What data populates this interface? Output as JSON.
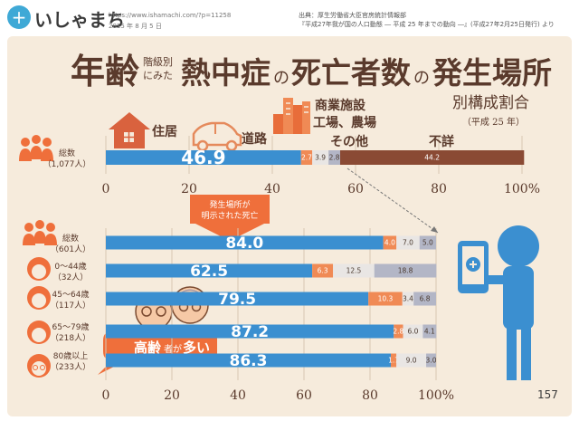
{
  "header": {
    "logo_icon": "plus-circle-icon",
    "logo": "いしゃまち",
    "url": "https://www.ishamachi.com/?p=11258",
    "date": "2015 年 8 月 5 日",
    "source_line1": "出典：厚生労働省大臣官房統計情報部",
    "source_line2": "『平成27年我が国の人口動態 ― 平成 25 年までの動向 ―』(平成27年2月25日発行) より"
  },
  "title": {
    "part1": "年齢",
    "small1": "階級別",
    "small2": "にみた",
    "part2": "熱中症",
    "no1": "の",
    "part3": "死亡者数",
    "no2": "の",
    "part4": "発生場所",
    "subtitle": "別構成割合",
    "year": "（平成 25 年）"
  },
  "colors": {
    "blue": "#3b8fd0",
    "orange": "#f08a55",
    "light_gray": "#e9e6e4",
    "slate": "#b3b6c6",
    "brown": "#8a4a34",
    "panel": "#f6ebdc"
  },
  "notes": {
    "arrow_label_1": "発生場所が",
    "arrow_label_2": "明示された死亡",
    "elderly_line1": "高齢",
    "elderly_small": "者が",
    "elderly_line2": "多い",
    "page_number": "157"
  },
  "chart_data": [
    {
      "type": "bar",
      "stacked": true,
      "orientation": "horizontal",
      "categories": [
        "総数（1,077人）"
      ],
      "category_labels": [
        [
          "総数",
          "（1,077人）"
        ]
      ],
      "series": [
        {
          "name": "住居",
          "values": [
            46.9
          ],
          "color": "#3b8fd0"
        },
        {
          "name": "道路",
          "values": [
            2.7
          ],
          "color": "#f08a55"
        },
        {
          "name": "商業施設 工場、農場",
          "values": [
            3.9
          ],
          "color": "#e9e6e4"
        },
        {
          "name": "その他",
          "values": [
            2.8
          ],
          "color": "#b3b6c6"
        },
        {
          "name": "不詳",
          "values": [
            44.2
          ],
          "color": "#8a4a34"
        }
      ],
      "x_ticks": [
        "0",
        "20",
        "40",
        "60",
        "80",
        "100%"
      ],
      "xlim": [
        0,
        100
      ]
    },
    {
      "type": "bar",
      "stacked": true,
      "orientation": "horizontal",
      "categories": [
        "総数（601人）",
        "0〜44歳（32人）",
        "45〜64歳（117人）",
        "65〜79歳（218人）",
        "80歳以上（233人）"
      ],
      "category_labels": [
        [
          "総数",
          "（601人）"
        ],
        [
          "0〜44歳",
          "（32人）"
        ],
        [
          "45〜64歳",
          "（117人）"
        ],
        [
          "65〜79歳",
          "（218人）"
        ],
        [
          "80歳以上",
          "（233人）"
        ]
      ],
      "series": [
        {
          "name": "住居",
          "values": [
            84.0,
            62.5,
            79.5,
            87.2,
            86.3
          ],
          "color": "#3b8fd0"
        },
        {
          "name": "道路",
          "values": [
            4.0,
            6.3,
            10.3,
            2.8,
            1.7
          ],
          "color": "#f08a55"
        },
        {
          "name": "商業施設 工場、農場",
          "values": [
            7.0,
            12.5,
            3.4,
            6.0,
            9.0
          ],
          "color": "#e9e6e4"
        },
        {
          "name": "その他",
          "values": [
            5.0,
            18.8,
            6.8,
            4.1,
            3.0
          ],
          "color": "#b3b6c6"
        }
      ],
      "x_ticks": [
        "0",
        "20",
        "40",
        "60",
        "80",
        "100%"
      ],
      "xlim": [
        0,
        100
      ]
    }
  ]
}
